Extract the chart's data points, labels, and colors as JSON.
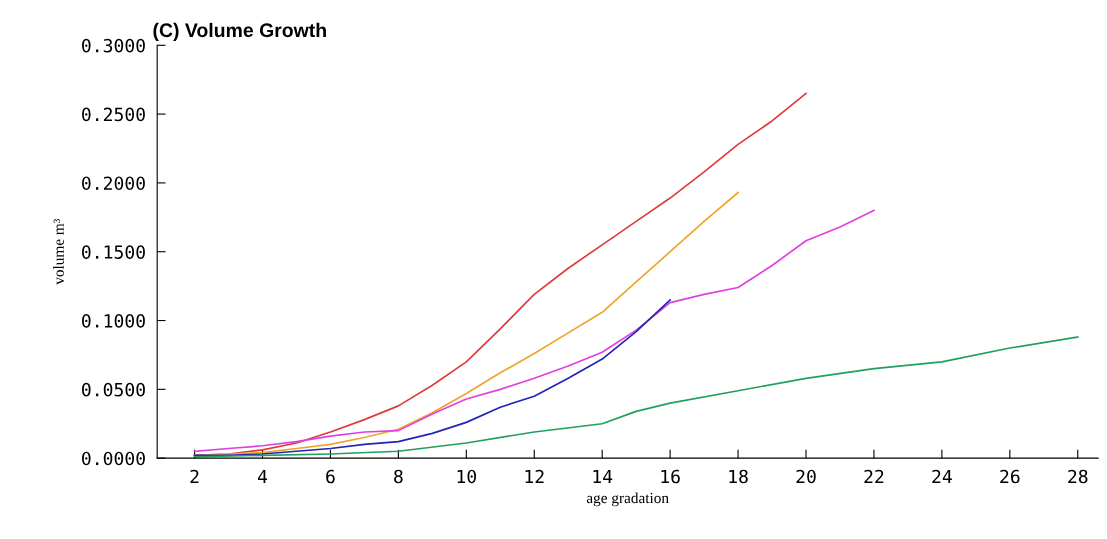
{
  "chart_data": {
    "type": "line",
    "title": "(C) Volume Growth",
    "xlabel": "age gradation",
    "ylabel": "volume m³",
    "xlim": [
      0.9,
      28.6
    ],
    "xticks": [
      2,
      4,
      6,
      8,
      10,
      12,
      14,
      16,
      18,
      20,
      22,
      24,
      26,
      28
    ],
    "ylim": [
      0,
      0.3
    ],
    "yticks": [
      {
        "value": 0,
        "label": "0.0000"
      },
      {
        "value": 0.05,
        "label": "0.0500"
      },
      {
        "value": 0.1,
        "label": "0.1000"
      },
      {
        "value": 0.15,
        "label": "0.1500"
      },
      {
        "value": 0.2,
        "label": "0.2000"
      },
      {
        "value": 0.25,
        "label": "0.2500"
      },
      {
        "value": 0.3,
        "label": "0.3000"
      }
    ],
    "grid": false,
    "legend": false,
    "marker": "none",
    "line_style": "solid",
    "series": [
      {
        "color": "#e03a3a",
        "x": [
          2,
          3,
          4,
          5,
          6,
          7,
          8,
          9,
          10,
          11,
          12,
          13,
          14,
          15,
          16,
          17,
          18,
          19,
          20
        ],
        "values": [
          0.002,
          0.003,
          0.006,
          0.011,
          0.019,
          0.028,
          0.038,
          0.053,
          0.07,
          0.094,
          0.119,
          0.138,
          0.155,
          0.172,
          0.189,
          0.208,
          0.228,
          0.245,
          0.265
        ]
      },
      {
        "color": "#f0a428",
        "x": [
          2,
          3,
          4,
          5,
          6,
          7,
          8,
          9,
          10,
          11,
          12,
          13,
          14,
          15,
          16,
          17,
          18
        ],
        "values": [
          0.002,
          0.003,
          0.004,
          0.007,
          0.01,
          0.015,
          0.021,
          0.033,
          0.047,
          0.062,
          0.076,
          0.091,
          0.106,
          0.128,
          0.15,
          0.172,
          0.193
        ]
      },
      {
        "color": "#e040e0",
        "x": [
          2,
          3,
          4,
          5,
          6,
          7,
          8,
          9,
          10,
          11,
          12,
          13,
          14,
          15,
          16,
          17,
          18,
          19,
          20,
          21,
          22
        ],
        "values": [
          0.005,
          0.007,
          0.009,
          0.012,
          0.016,
          0.019,
          0.02,
          0.032,
          0.043,
          0.05,
          0.058,
          0.067,
          0.077,
          0.093,
          0.113,
          0.119,
          0.124,
          0.14,
          0.158,
          0.168,
          0.18
        ]
      },
      {
        "color": "#2424b8",
        "x": [
          2,
          3,
          4,
          5,
          6,
          7,
          8,
          9,
          10,
          11,
          12,
          13,
          14,
          15,
          16
        ],
        "values": [
          0.002,
          0.002,
          0.003,
          0.005,
          0.007,
          0.01,
          0.012,
          0.018,
          0.026,
          0.037,
          0.045,
          0.058,
          0.072,
          0.092,
          0.115
        ]
      },
      {
        "color": "#20a060",
        "x": [
          2,
          4,
          6,
          8,
          10,
          12,
          14,
          15,
          16,
          18,
          20,
          22,
          24,
          26,
          28
        ],
        "values": [
          0.001,
          0.002,
          0.003,
          0.005,
          0.011,
          0.019,
          0.025,
          0.034,
          0.04,
          0.049,
          0.058,
          0.065,
          0.07,
          0.08,
          0.088
        ]
      }
    ]
  }
}
